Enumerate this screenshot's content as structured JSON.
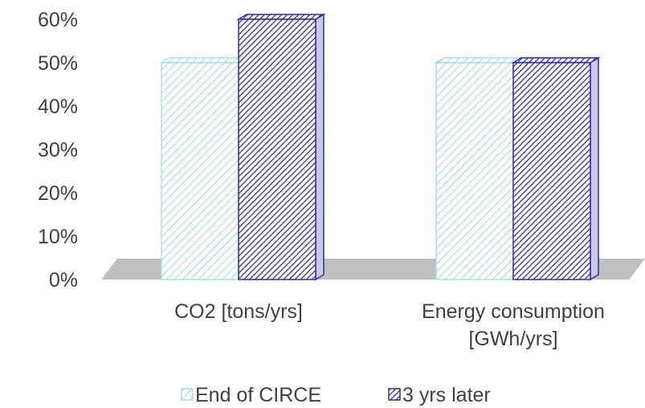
{
  "chart_data": {
    "type": "bar",
    "title": "",
    "xlabel": "",
    "ylabel": "",
    "categories": [
      [
        "CO2 [tons/yrs]"
      ],
      [
        "Energy consumption",
        "[GWh/yrs]"
      ]
    ],
    "series": [
      {
        "name": "End of CIRCE",
        "values": [
          50,
          50
        ],
        "color": "#b7e3ea"
      },
      {
        "name": "3 yrs later",
        "values": [
          60,
          50
        ],
        "color": "#3b3ba6"
      }
    ],
    "ylim": [
      0,
      60
    ],
    "yticks": [
      "0%",
      "10%",
      "20%",
      "30%",
      "40%",
      "50%",
      "60%"
    ],
    "y_unit": "%",
    "grid": false,
    "legend_position": "bottom",
    "style": "3d-clustered-column"
  }
}
